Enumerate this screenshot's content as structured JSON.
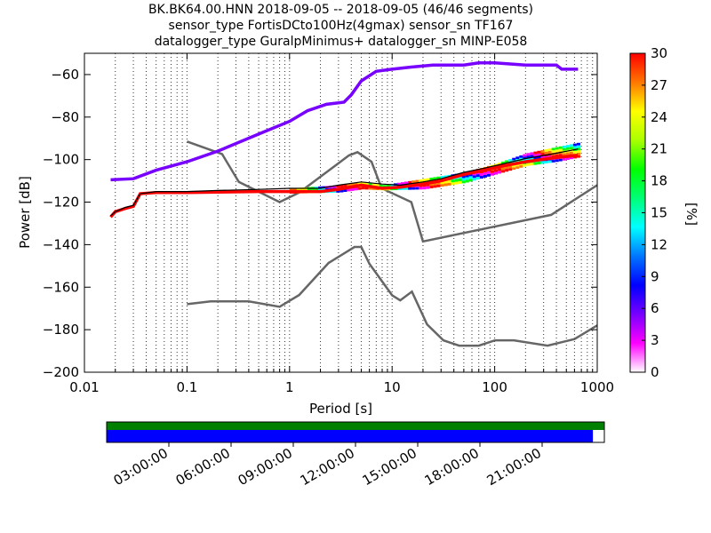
{
  "chart_data": {
    "type": "heatmap",
    "title_lines": [
      "BK.BK64.00.HNN   2018-09-05 -- 2018-09-05  (46/46 segments)",
      "sensor_type FortisDCto100Hz(4gmax) sensor_sn TF167",
      "datalogger_type GuralpMinimus+ datalogger_sn MINP-E058"
    ],
    "xlabel": "Period [s]",
    "ylabel": "Power [dB]",
    "xscale": "log",
    "xlim": [
      0.01,
      1000
    ],
    "ylim": [
      -200,
      -50
    ],
    "xticks": [
      0.01,
      0.1,
      1,
      10,
      100,
      1000
    ],
    "xtick_labels": [
      "0.01",
      "0.1",
      "1",
      "10",
      "100",
      "1000"
    ],
    "yticks": [
      -200,
      -180,
      -160,
      -140,
      -120,
      -100,
      -80,
      -60
    ],
    "ytick_labels": [
      "−200",
      "−180",
      "−160",
      "−140",
      "−120",
      "−100",
      "−80",
      "−60"
    ],
    "grid": "vertical dotted lines at each decade subdivision",
    "colorbar": {
      "label": "[%]",
      "range": [
        0,
        30
      ],
      "ticks": [
        0,
        3,
        6,
        9,
        12,
        15,
        18,
        21,
        24,
        27,
        30
      ],
      "tick_labels": [
        "0",
        "3",
        "6",
        "9",
        "12",
        "15",
        "18",
        "21",
        "24",
        "27",
        "30"
      ],
      "colormap": [
        "#ffffff",
        "#ff00ff",
        "#7700ff",
        "#0000ff",
        "#0077ff",
        "#00ffff",
        "#00ff77",
        "#00ff00",
        "#aaff00",
        "#ffff00",
        "#ff7700",
        "#ff0000"
      ]
    },
    "noise_models": [
      {
        "name": "NHNM",
        "points": [
          [
            0.1,
            -91.5
          ],
          [
            0.22,
            -97.4
          ],
          [
            0.32,
            -110.5
          ],
          [
            0.8,
            -120
          ],
          [
            1.24,
            -115.5
          ],
          [
            3.8,
            -98
          ],
          [
            4.6,
            -96.5
          ],
          [
            6.3,
            -101
          ],
          [
            7.9,
            -113.5
          ],
          [
            15.4,
            -120
          ],
          [
            20,
            -138.5
          ],
          [
            354.8,
            -126
          ],
          [
            1000,
            -112
          ]
        ]
      },
      {
        "name": "NLNM",
        "points": [
          [
            0.1,
            -168
          ],
          [
            0.17,
            -166.7
          ],
          [
            0.4,
            -166.7
          ],
          [
            0.8,
            -169.2
          ],
          [
            1.24,
            -163.7
          ],
          [
            2.4,
            -148.6
          ],
          [
            4.3,
            -141.1
          ],
          [
            5,
            -141.1
          ],
          [
            6,
            -149
          ],
          [
            10,
            -163.8
          ],
          [
            12,
            -166.2
          ],
          [
            15.6,
            -162.1
          ],
          [
            21.9,
            -177.5
          ],
          [
            31.6,
            -185
          ],
          [
            45,
            -187.5
          ],
          [
            70,
            -187.5
          ],
          [
            101,
            -185
          ],
          [
            154,
            -185
          ],
          [
            328,
            -187.5
          ],
          [
            600,
            -184.4
          ],
          [
            1000,
            -178
          ]
        ]
      }
    ],
    "psd_curves": [
      {
        "name": "distribution_mode",
        "color": "#ff0000",
        "points": [
          [
            0.018,
            -127
          ],
          [
            0.02,
            -124.5
          ],
          [
            0.025,
            -123
          ],
          [
            0.03,
            -122
          ],
          [
            0.035,
            -116
          ],
          [
            0.05,
            -115.5
          ],
          [
            0.1,
            -115.5
          ],
          [
            0.2,
            -115.3
          ],
          [
            0.5,
            -115
          ],
          [
            1,
            -115
          ],
          [
            2,
            -115
          ],
          [
            3,
            -114
          ],
          [
            5,
            -112
          ],
          [
            8,
            -113.5
          ],
          [
            12,
            -113
          ],
          [
            20,
            -111.5
          ],
          [
            30,
            -110
          ],
          [
            50,
            -107
          ],
          [
            80,
            -105
          ],
          [
            120,
            -103
          ],
          [
            200,
            -101
          ],
          [
            400,
            -99
          ],
          [
            650,
            -98
          ]
        ]
      },
      {
        "name": "outlier_upper_branch",
        "color": "#7700ff",
        "points": [
          [
            0.018,
            -109.5
          ],
          [
            0.03,
            -109
          ],
          [
            0.05,
            -105
          ],
          [
            0.1,
            -101
          ],
          [
            0.2,
            -96
          ],
          [
            0.5,
            -88
          ],
          [
            1,
            -82
          ],
          [
            1.5,
            -77
          ],
          [
            2.3,
            -74
          ],
          [
            3.4,
            -73
          ],
          [
            4,
            -69.5
          ],
          [
            5,
            -63
          ],
          [
            7,
            -58.5
          ],
          [
            10,
            -57.5
          ],
          [
            15,
            -56.5
          ],
          [
            25,
            -55.5
          ],
          [
            50,
            -55.5
          ],
          [
            70,
            -54.5
          ],
          [
            100,
            -54.5
          ],
          [
            200,
            -55.5
          ],
          [
            400,
            -55.5
          ],
          [
            450,
            -57.5
          ],
          [
            650,
            -57.5
          ]
        ]
      }
    ],
    "psd_band": {
      "lower_edge": [
        [
          1,
          -116
        ],
        [
          3,
          -115.5
        ],
        [
          5,
          -114
        ],
        [
          8,
          -114.5
        ],
        [
          20,
          -114
        ],
        [
          50,
          -111
        ],
        [
          100,
          -107
        ],
        [
          200,
          -103
        ],
        [
          400,
          -101
        ],
        [
          650,
          -99
        ]
      ],
      "upper_edge": [
        [
          1,
          -113.5
        ],
        [
          3,
          -112
        ],
        [
          5,
          -110.5
        ],
        [
          8,
          -112
        ],
        [
          20,
          -109
        ],
        [
          50,
          -106
        ],
        [
          100,
          -102
        ],
        [
          200,
          -97
        ],
        [
          400,
          -94
        ],
        [
          650,
          -92
        ]
      ]
    },
    "statistic_line": {
      "name": "mean",
      "color": "#000000",
      "points": [
        [
          0.018,
          -126.5
        ],
        [
          0.02,
          -124.5
        ],
        [
          0.025,
          -122.5
        ],
        [
          0.03,
          -121.5
        ],
        [
          0.035,
          -116
        ],
        [
          0.05,
          -115
        ],
        [
          0.1,
          -115
        ],
        [
          0.2,
          -114.5
        ],
        [
          0.5,
          -114
        ],
        [
          1,
          -113.5
        ],
        [
          2,
          -113.5
        ],
        [
          3,
          -112
        ],
        [
          5,
          -110.5
        ],
        [
          8,
          -111.5
        ],
        [
          12,
          -112
        ],
        [
          20,
          -110.5
        ],
        [
          30,
          -109
        ],
        [
          50,
          -106
        ],
        [
          80,
          -104
        ],
        [
          120,
          -102
        ],
        [
          200,
          -99.5
        ],
        [
          400,
          -97
        ],
        [
          650,
          -95
        ]
      ]
    },
    "data_availability": {
      "time_ticks": [
        "03:00:00",
        "06:00:00",
        "09:00:00",
        "12:00:00",
        "15:00:00",
        "18:00:00",
        "21:00:00"
      ],
      "coverage_top_fraction": 1.0,
      "coverage_bottom_fraction": 0.977,
      "top_color": "#008000",
      "bottom_color": "#0000ff"
    }
  }
}
